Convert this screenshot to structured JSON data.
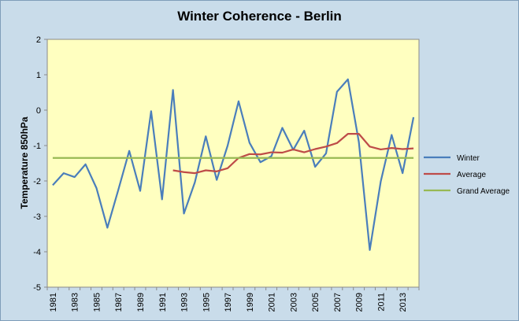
{
  "chart_data": {
    "type": "line",
    "title": "Winter Coherence - Berlin",
    "xlabel": "",
    "ylabel": "Temperature 850hPa",
    "ylim": [
      -5,
      2
    ],
    "yticks": [
      "2",
      "1",
      "0",
      "-1",
      "-2",
      "-3",
      "-4",
      "-5"
    ],
    "x": [
      1981,
      1982,
      1983,
      1984,
      1985,
      1986,
      1987,
      1988,
      1989,
      1990,
      1991,
      1992,
      1993,
      1994,
      1995,
      1996,
      1997,
      1998,
      1999,
      2000,
      2001,
      2002,
      2003,
      2004,
      2005,
      2006,
      2007,
      2008,
      2009,
      2010,
      2011,
      2012,
      2013,
      2014
    ],
    "xtick_labels": [
      "1981",
      "1983",
      "1985",
      "1987",
      "1989",
      "1991",
      "1993",
      "1995",
      "1997",
      "1999",
      "2001",
      "2003",
      "2005",
      "2007",
      "2009",
      "2011",
      "2013"
    ],
    "grid": false,
    "plot_background": "#ffffc0",
    "legend_position": "right",
    "series": [
      {
        "name": "Winter",
        "color": "#4a7ebb",
        "values": [
          -2.12,
          -1.78,
          -1.89,
          -1.53,
          -2.2,
          -3.32,
          -2.25,
          -1.15,
          -2.28,
          -0.03,
          -2.52,
          0.57,
          -2.92,
          -2.04,
          -0.74,
          -1.97,
          -1.0,
          0.25,
          -0.92,
          -1.47,
          -1.3,
          -0.5,
          -1.12,
          -0.58,
          -1.6,
          -1.22,
          0.52,
          0.87,
          -0.9,
          -3.95,
          -2.02,
          -0.7,
          -1.78,
          -0.2
        ]
      },
      {
        "name": "Average",
        "color": "#be4b48",
        "values": [
          null,
          null,
          null,
          null,
          null,
          null,
          null,
          null,
          null,
          null,
          null,
          -1.7,
          -1.75,
          -1.78,
          -1.7,
          -1.73,
          -1.64,
          -1.35,
          -1.24,
          -1.25,
          -1.19,
          -1.2,
          -1.11,
          -1.19,
          -1.1,
          -1.03,
          -0.93,
          -0.67,
          -0.67,
          -1.03,
          -1.11,
          -1.07,
          -1.1,
          -1.08
        ]
      },
      {
        "name": "Grand Average",
        "color": "#98b954",
        "values": [
          -1.35,
          -1.35,
          -1.35,
          -1.35,
          -1.35,
          -1.35,
          -1.35,
          -1.35,
          -1.35,
          -1.35,
          -1.35,
          -1.35,
          -1.35,
          -1.35,
          -1.35,
          -1.35,
          -1.35,
          -1.35,
          -1.35,
          -1.35,
          -1.35,
          -1.35,
          -1.35,
          -1.35,
          -1.35,
          -1.35,
          -1.35,
          -1.35,
          -1.35,
          -1.35,
          -1.35,
          -1.35,
          -1.35,
          -1.35
        ]
      }
    ]
  }
}
